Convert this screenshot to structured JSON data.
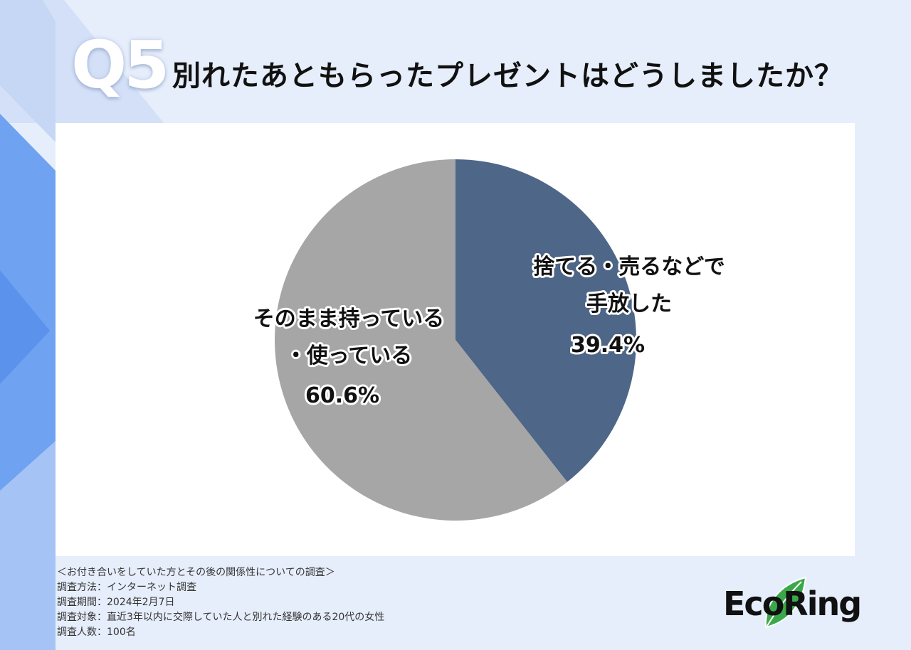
{
  "header": {
    "badge": "Q5",
    "title": "別れたあともらったプレゼントはどうしましたか？"
  },
  "chart_data": {
    "type": "pie",
    "title": "別れたあともらったプレゼントはどうしましたか？",
    "slices": [
      {
        "label_lines": [
          "捨てる・売るなどで",
          "手放した"
        ],
        "value": 39.4,
        "value_label": "39.4%",
        "color": "#4e6687"
      },
      {
        "label_lines": [
          "そのまま持っている",
          "・使っている"
        ],
        "value": 60.6,
        "value_label": "60.6%",
        "color": "#a6a6a6"
      }
    ],
    "start_angle": "top",
    "direction": "clockwise"
  },
  "notes": [
    "＜お付き合いをしていた方とその後の関係性についての調査＞",
    "調査方法：インターネット調査",
    "調査期間：2024年2月7日",
    "調査対象：直近3年以内に交際していた人と別れた経験のある20代の女性",
    "調査人数：100名"
  ],
  "logo": {
    "text": "EcoRing",
    "leaf_color": "#3aa84a"
  }
}
